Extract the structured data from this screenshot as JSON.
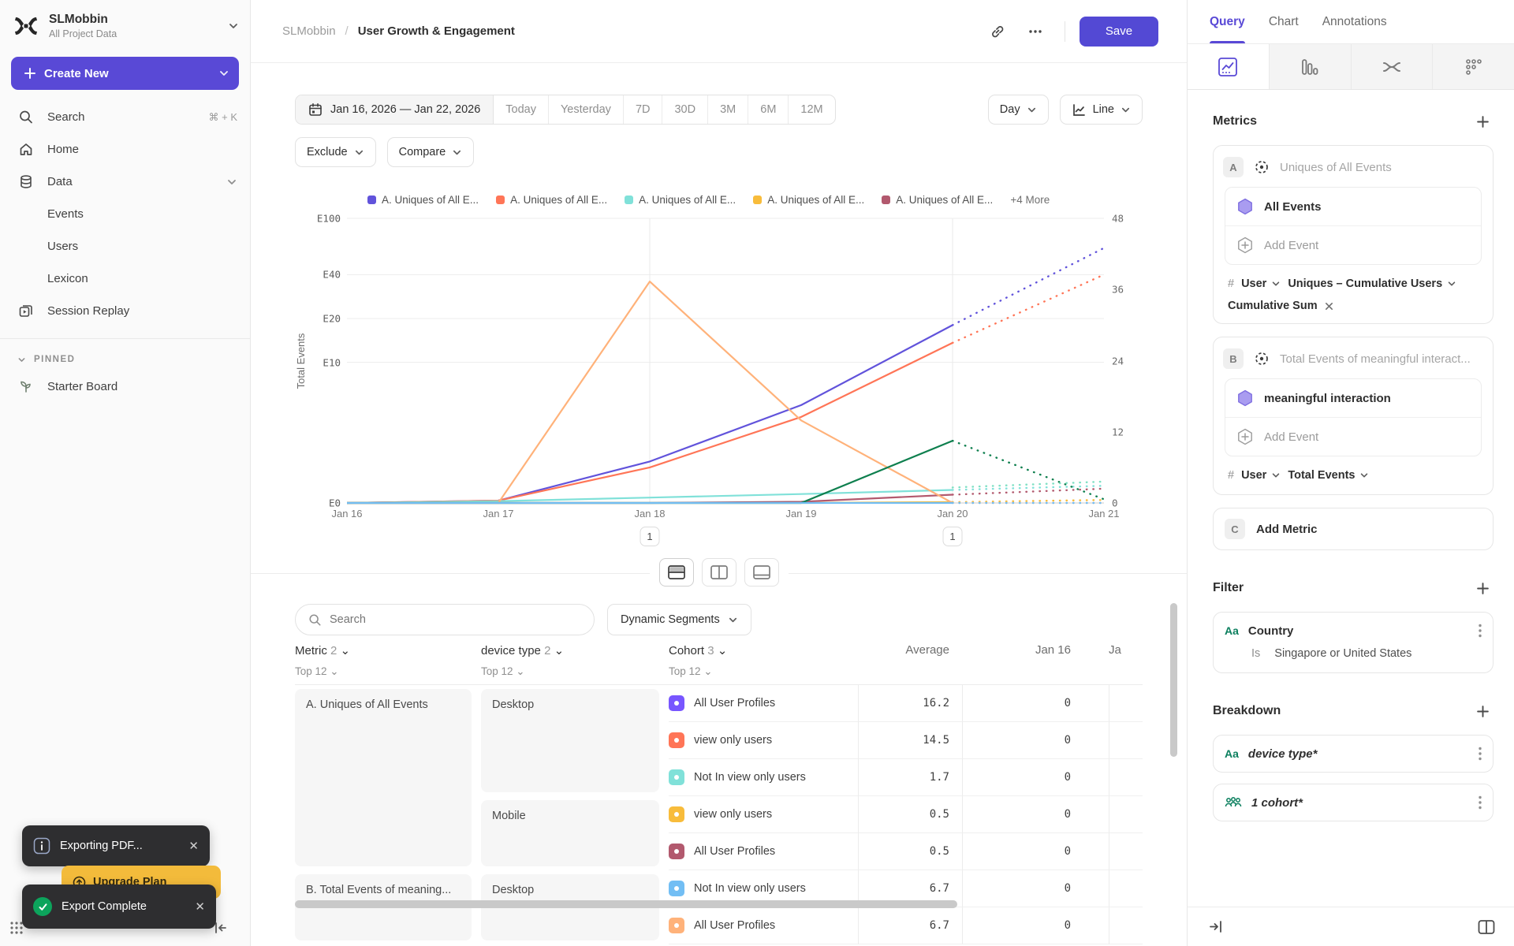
{
  "workspace": {
    "name": "SLMobbin",
    "subtitle": "All Project Data"
  },
  "sidebar": {
    "create_new": "Create New",
    "items": {
      "search": "Search",
      "search_shortcut": "⌘ + K",
      "home": "Home",
      "data": "Data",
      "events": "Events",
      "users": "Users",
      "lexicon": "Lexicon",
      "session_replay": "Session Replay"
    },
    "pinned_label": "PINNED",
    "pinned_board": "Starter Board"
  },
  "header": {
    "breadcrumb_root": "SLMobbin",
    "breadcrumb_sep": "/",
    "title": "User Growth & Engagement",
    "save_label": "Save"
  },
  "toolbar": {
    "date_range": "Jan 16, 2026 — Jan 22, 2026",
    "presets": [
      "Today",
      "Yesterday",
      "7D",
      "30D",
      "3M",
      "6M",
      "12M"
    ],
    "exclude": "Exclude",
    "compare": "Compare",
    "granularity": "Day",
    "chart_type": "Line"
  },
  "legend": {
    "items": [
      {
        "label": "A. Uniques of All E...",
        "color": "#6153db"
      },
      {
        "label": "A. Uniques of All E...",
        "color": "#ff7557"
      },
      {
        "label": "A. Uniques of All E...",
        "color": "#80e1d9"
      },
      {
        "label": "A. Uniques of All E...",
        "color": "#f8bc3b"
      },
      {
        "label": "A. Uniques of All E...",
        "color": "#b2596e"
      }
    ],
    "more": "+4 More"
  },
  "chart_data": {
    "type": "line",
    "x": [
      "Jan 16",
      "Jan 17",
      "Jan 18",
      "Jan 19",
      "Jan 20",
      "Jan 21"
    ],
    "solid_points": 5,
    "left_axis": {
      "label": "Total Events",
      "scale": "log",
      "ticks": [
        "E100",
        "E40",
        "E20",
        "E10",
        "E0"
      ],
      "tick_pcts": [
        0,
        19.8,
        35.2,
        50.6,
        100
      ]
    },
    "right_axis": {
      "ticks": [
        "48",
        "36",
        "24",
        "12",
        "0"
      ],
      "tick_pcts": [
        0,
        25,
        50,
        75,
        100
      ],
      "max": 48
    },
    "annotations": [
      {
        "index": 2,
        "label": "1"
      },
      {
        "index": 4,
        "label": "1"
      }
    ],
    "series": [
      {
        "name": "A. Uniques of All E...",
        "color": "#6153db",
        "axis": "right",
        "values": [
          0,
          0.4,
          7,
          16.5,
          30,
          43
        ]
      },
      {
        "name": "A. Uniques of All E...",
        "color": "#ff7557",
        "axis": "right",
        "values": [
          0,
          0.4,
          6,
          14.5,
          27,
          38.5
        ]
      },
      {
        "name": "A. Uniques of All E...",
        "color": "#80e1d9",
        "axis": "right",
        "values": [
          0,
          0.3,
          0.9,
          1.5,
          2.2,
          2.9
        ]
      },
      {
        "name": "A. Uniques of All E...",
        "color": "#f8bc3b",
        "axis": "right",
        "values": [
          0,
          0,
          0,
          0,
          0.15,
          0.5
        ]
      },
      {
        "name": "A. Uniques of All E...",
        "color": "#b2596e",
        "axis": "right",
        "values": [
          0,
          0,
          0,
          0.2,
          1.4,
          2.4
        ]
      },
      {
        "name": "B. Total Events",
        "color": "#ffb27a",
        "axis": "left",
        "values": [
          0,
          0,
          36,
          4,
          0,
          0
        ]
      },
      {
        "name": "B. Total Events",
        "color": "#0e7f4e",
        "axis": "left",
        "values": [
          0,
          0,
          0,
          0,
          2.9,
          1.15
        ]
      },
      {
        "name": "B. Total Events",
        "color": "#7fe0c3",
        "axis": "right",
        "dashed_only": true,
        "values": [
          null,
          null,
          null,
          null,
          2.6,
          3.6
        ]
      },
      {
        "name": "B. Total Events",
        "color": "#72bef4",
        "axis": "right",
        "values": [
          0,
          0,
          0,
          0,
          0,
          0
        ]
      }
    ]
  },
  "chart_footer": {
    "search_placeholder": "Search",
    "segments_label": "Dynamic Segments"
  },
  "table": {
    "columns": {
      "metric": {
        "label": "Metric",
        "count": "2",
        "top": "Top 12"
      },
      "device": {
        "label": "device type",
        "count": "2",
        "top": "Top 12"
      },
      "cohort": {
        "label": "Cohort",
        "count": "3",
        "top": "Top 12"
      },
      "average": "Average",
      "day1": "Jan 16",
      "day2_cut": "Ja"
    },
    "groups": [
      {
        "metric": "A. Uniques of All Events",
        "devices": [
          {
            "device": "Desktop",
            "rows": [
              {
                "color": "#7856ff",
                "cohort": "All User Profiles",
                "average": "16.2",
                "day1": "0"
              },
              {
                "color": "#ff7557",
                "cohort": "view only users",
                "average": "14.5",
                "day1": "0"
              },
              {
                "color": "#80e1d9",
                "cohort": "Not In view only users",
                "average": "1.7",
                "day1": "0"
              }
            ]
          },
          {
            "device": "Mobile",
            "rows": [
              {
                "color": "#f8bc3b",
                "cohort": "view only users",
                "average": "0.5",
                "day1": "0"
              },
              {
                "color": "#b2596e",
                "cohort": "All User Profiles",
                "average": "0.5",
                "day1": "0"
              }
            ]
          }
        ]
      },
      {
        "metric": "B. Total Events of meaning...",
        "devices": [
          {
            "device": "Desktop",
            "rows": [
              {
                "color": "#72bef4",
                "cohort": "Not In view only users",
                "average": "6.7",
                "day1": "0"
              },
              {
                "color": "#ffb27a",
                "cohort": "All User Profiles",
                "average": "6.7",
                "day1": "0"
              }
            ]
          }
        ]
      }
    ]
  },
  "panel": {
    "tabs": {
      "query": "Query",
      "chart": "Chart",
      "annotations": "Annotations"
    },
    "metrics": {
      "title": "Metrics",
      "a": {
        "badge": "A",
        "title": "Uniques of All Events",
        "event": "All Events",
        "add_event": "Add Event",
        "hash": "#",
        "entity": "User",
        "measure": "Uniques – Cumulative Users",
        "chip": "Cumulative Sum"
      },
      "b": {
        "badge": "B",
        "title": "Total Events of meaningful interact...",
        "event": "meaningful interaction",
        "add_event": "Add Event",
        "hash": "#",
        "entity": "User",
        "measure": "Total Events"
      },
      "add": {
        "badge": "C",
        "label": "Add Metric"
      }
    },
    "filter": {
      "title": "Filter",
      "type": "Aa",
      "name": "Country",
      "op": "Is",
      "value": "Singapore or United States"
    },
    "breakdown": {
      "title": "Breakdown",
      "item1_type": "Aa",
      "item1": "device type*",
      "item2": "1 cohort*"
    }
  },
  "toasts": {
    "exporting": "Exporting PDF...",
    "complete": "Export Complete",
    "upgrade": "Upgrade Plan"
  }
}
